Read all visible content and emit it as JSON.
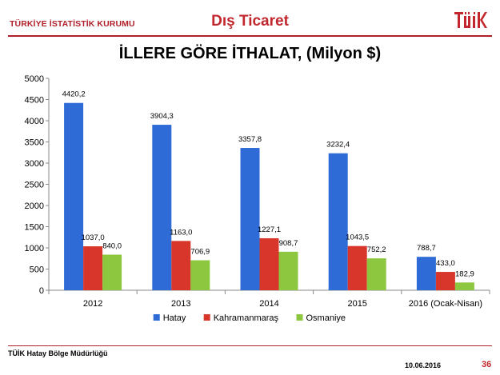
{
  "header": {
    "org": "TÜRKİYE İSTATİSTİK KURUMU",
    "section": "Dış Ticaret",
    "logo_text": "TÜİK"
  },
  "chart_data": {
    "type": "bar",
    "title": "İLLERE GÖRE İTHALAT, (Milyon $)",
    "categories": [
      "2012",
      "2013",
      "2014",
      "2015",
      "2016 (Ocak-Nisan)"
    ],
    "series": [
      {
        "name": "Hatay",
        "color": "#2e6bd6",
        "values": [
          4420.2,
          3904.3,
          3357.8,
          3232.4,
          788.7
        ],
        "labels": [
          "4420,2",
          "3904,3",
          "3357,8",
          "3232,4",
          "788,7"
        ]
      },
      {
        "name": "Kahramanmaraş",
        "color": "#d8362b",
        "values": [
          1037.0,
          1163.0,
          1227.1,
          1043.5,
          433.0
        ],
        "labels": [
          "1037,0",
          "1163,0",
          "1227,1",
          "1043,5",
          "433,0"
        ]
      },
      {
        "name": "Osmaniye",
        "color": "#8dc63f",
        "values": [
          840.0,
          706.9,
          908.7,
          752.2,
          182.9
        ],
        "labels": [
          "840,0",
          "706,9",
          "908,7",
          "752,2",
          "182,9"
        ]
      }
    ],
    "ylim": [
      0,
      5000
    ],
    "yticks": [
      0,
      500,
      1000,
      1500,
      2000,
      2500,
      3000,
      3500,
      4000,
      4500,
      5000
    ],
    "legend": "bottom",
    "grid": false
  },
  "footer": {
    "office": "TÜİK Hatay Bölge Müdürlüğü",
    "date": "10.06.2016",
    "page": "36"
  }
}
